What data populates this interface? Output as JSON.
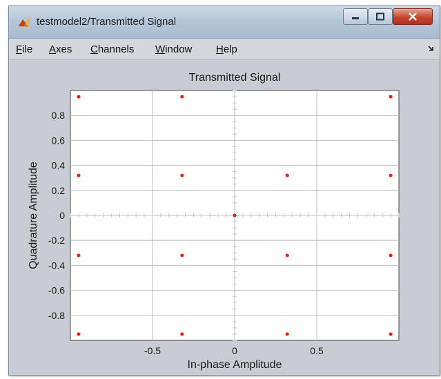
{
  "window": {
    "title": "testmodel2/Transmitted Signal",
    "icon": "matlab-icon"
  },
  "title_buttons": [
    "minimize-icon",
    "maximize-icon",
    "close-icon"
  ],
  "menu": {
    "items": [
      {
        "label": "File",
        "mnemonic": "F",
        "rest": "ile"
      },
      {
        "label": "Axes",
        "mnemonic": "A",
        "rest": "xes"
      },
      {
        "label": "Channels",
        "mnemonic": "C",
        "rest": "hannels"
      },
      {
        "label": "Window",
        "mnemonic": "W",
        "rest": "indow"
      },
      {
        "label": "Help",
        "mnemonic": "H",
        "rest": "elp"
      }
    ]
  },
  "chart_data": {
    "type": "scatter",
    "title": "Transmitted Signal",
    "xlabel": "In-phase Amplitude",
    "ylabel": "Quadrature Amplitude",
    "xlim": [
      -1,
      1
    ],
    "ylim": [
      -1,
      1
    ],
    "xticks": [
      -0.5,
      0,
      0.5
    ],
    "xtick_labels": [
      "-0.5",
      "0",
      "0.5"
    ],
    "yticks": [
      0.8,
      0.6,
      0.4,
      0.2,
      0,
      -0.2,
      -0.4,
      -0.6,
      -0.8
    ],
    "ytick_labels": [
      "0.8",
      "0.6",
      "0.4",
      "0.2",
      "0",
      "-0.2",
      "-0.4",
      "-0.6",
      "-0.8"
    ],
    "grid": true,
    "marker_color": "#d42a2a",
    "points": [
      {
        "x": -0.95,
        "y": 0.95
      },
      {
        "x": -0.32,
        "y": 0.95
      },
      {
        "x": 0.95,
        "y": 0.95
      },
      {
        "x": -0.95,
        "y": 0.32
      },
      {
        "x": -0.32,
        "y": 0.32
      },
      {
        "x": 0.32,
        "y": 0.32
      },
      {
        "x": 0.95,
        "y": 0.32
      },
      {
        "x": 0,
        "y": 0
      },
      {
        "x": -0.95,
        "y": -0.32
      },
      {
        "x": -0.32,
        "y": -0.32
      },
      {
        "x": 0.32,
        "y": -0.32
      },
      {
        "x": 0.95,
        "y": -0.32
      },
      {
        "x": -0.95,
        "y": -0.95
      },
      {
        "x": -0.32,
        "y": -0.95
      },
      {
        "x": 0.32,
        "y": -0.95
      },
      {
        "x": 0.95,
        "y": -0.95
      }
    ]
  }
}
